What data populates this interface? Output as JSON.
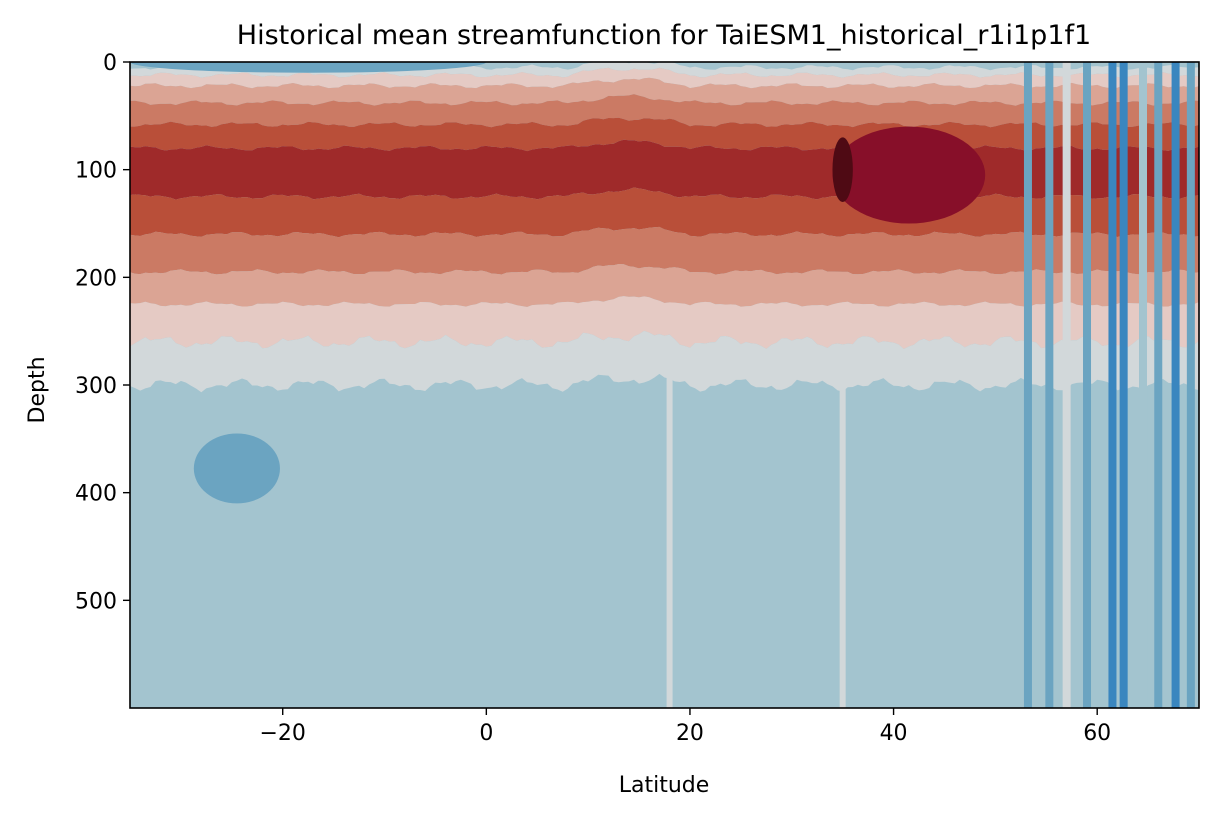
{
  "chart_data": {
    "type": "heatmap",
    "subtype": "filled-contour",
    "title": "Historical mean streamfunction for TaiESM1_historical_r1i1p1f1",
    "xlabel": "Latitude",
    "ylabel": "Depth",
    "xlim": [
      -35,
      70
    ],
    "ylim": [
      600,
      0
    ],
    "y_inverted": true,
    "x_ticks": [
      -20,
      0,
      20,
      40,
      60
    ],
    "x_tick_labels": [
      "−20",
      "0",
      "20",
      "40",
      "60"
    ],
    "y_ticks": [
      0,
      100,
      200,
      300,
      400,
      500
    ],
    "y_tick_labels": [
      "0",
      "100",
      "200",
      "300",
      "400",
      "500"
    ],
    "grid": false,
    "legend": "none",
    "colormap": "RdBu_r",
    "level_colors": [
      "#1a62a9",
      "#3a86bf",
      "#6ba4c1",
      "#a3c4cf",
      "#d2d8da",
      "#e5cac4",
      "#dba494",
      "#cb7a64",
      "#b94f39",
      "#9f2a2a",
      "#870f29",
      "#4f0a14"
    ],
    "depth_bands": [
      {
        "level": 3,
        "depth_top": 0,
        "depth_bottom": 5
      },
      {
        "level": 4,
        "depth_top": 5,
        "depth_bottom": 12
      },
      {
        "level": 5,
        "depth_top": 12,
        "depth_bottom": 22
      },
      {
        "level": 6,
        "depth_top": 22,
        "depth_bottom": 38
      },
      {
        "level": 7,
        "depth_top": 38,
        "depth_bottom": 58
      },
      {
        "level": 8,
        "depth_top": 58,
        "depth_bottom": 80
      },
      {
        "level": 9,
        "depth_top": 80,
        "depth_bottom": 125
      },
      {
        "level": 8,
        "depth_top": 125,
        "depth_bottom": 160
      },
      {
        "level": 7,
        "depth_top": 160,
        "depth_bottom": 195
      },
      {
        "level": 6,
        "depth_top": 195,
        "depth_bottom": 225
      },
      {
        "level": 5,
        "depth_top": 225,
        "depth_bottom": 260
      },
      {
        "level": 4,
        "depth_top": 260,
        "depth_bottom": 300
      },
      {
        "level": 3,
        "depth_top": 300,
        "depth_bottom": 600
      }
    ],
    "core_region": {
      "lat_min": 33,
      "lat_max": 48,
      "depth_min": 60,
      "depth_max": 150
    },
    "deep_core": {
      "lat_min": 34,
      "lat_max": 36,
      "depth_min": 70,
      "depth_max": 130
    },
    "surface_blue_lens": {
      "lat_min": -35,
      "lat_max": 0,
      "depth_min": 0,
      "depth_max": 10
    },
    "deep_blue_patch": {
      "lat_min": -31,
      "lat_max": -20,
      "depth_min": 345,
      "depth_max": 410
    },
    "high_lat_stripes": [
      {
        "lat": 53.2,
        "level": 2
      },
      {
        "lat": 55.3,
        "level": 2
      },
      {
        "lat": 57.0,
        "level": 4
      },
      {
        "lat": 59.0,
        "level": 2
      },
      {
        "lat": 61.5,
        "level": 1
      },
      {
        "lat": 62.6,
        "level": 1
      },
      {
        "lat": 64.5,
        "level": 3
      },
      {
        "lat": 66.0,
        "level": 2
      },
      {
        "lat": 67.7,
        "level": 1
      },
      {
        "lat": 69.2,
        "level": 2
      }
    ]
  }
}
